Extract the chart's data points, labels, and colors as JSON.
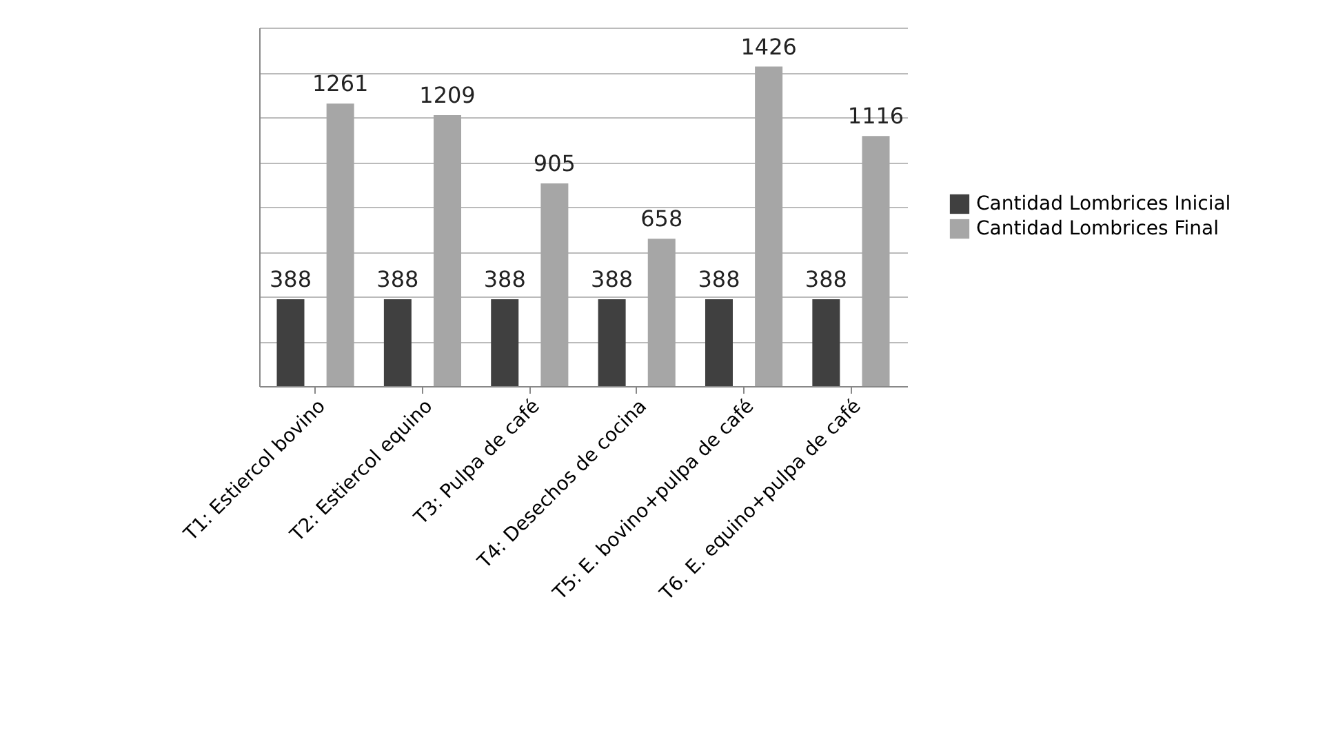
{
  "chart_data": {
    "type": "bar",
    "categories": [
      "T1: Estiercol bovino",
      "T2: Estiercol equino",
      "T3: Pulpa de café",
      "T4: Desechos de cocina",
      "T5: E. bovino+pulpa de café",
      "T6. E. equino+pulpa de café"
    ],
    "series": [
      {
        "name": "Cantidad Lombrices Inicial",
        "color": "#404040",
        "values": [
          388,
          388,
          388,
          388,
          388,
          388
        ]
      },
      {
        "name": "Cantidad Lombrices Final",
        "color": "#a6a6a6",
        "values": [
          1261,
          1209,
          905,
          658,
          1426,
          1116
        ]
      }
    ],
    "ylim": [
      0,
      1600
    ],
    "yticks": [
      {
        "value": 0,
        "label": null
      },
      {
        "value": 200,
        "label": null
      },
      {
        "value": 400,
        "label": null
      },
      {
        "value": 600,
        "label": null
      },
      {
        "value": 800,
        "label": null
      },
      {
        "value": 1000,
        "label": null
      },
      {
        "value": 1200,
        "label": null
      },
      {
        "value": 1400,
        "label": null
      },
      {
        "value": 1600,
        "label": null
      }
    ],
    "grid": "y",
    "legend": "right",
    "data_labels": true,
    "tick_labels": "x"
  }
}
